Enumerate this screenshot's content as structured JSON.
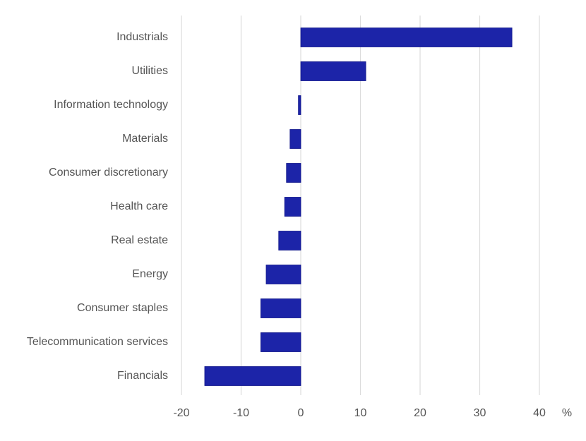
{
  "chart_data": {
    "type": "bar",
    "orientation": "horizontal",
    "title": "",
    "xlabel": "",
    "ylabel": "",
    "unit_label": "%",
    "categories": [
      "Industrials",
      "Utilities",
      "Information technology",
      "Materials",
      "Consumer discretionary",
      "Health care",
      "Real estate",
      "Energy",
      "Consumer staples",
      "Telecommunication services",
      "Financials"
    ],
    "values": [
      35.4,
      10.9,
      -0.4,
      -1.8,
      -2.4,
      -2.7,
      -3.7,
      -5.8,
      -6.7,
      -6.7,
      -16.1
    ],
    "xlim": [
      -20,
      40
    ],
    "xticks": [
      -20,
      -10,
      0,
      10,
      20,
      30,
      40
    ],
    "xtick_labels": [
      "-20",
      "-10",
      "0",
      "10",
      "20",
      "30",
      "40"
    ],
    "grid": "vertical",
    "legend": "none",
    "bar_color": "#1c24a8"
  }
}
